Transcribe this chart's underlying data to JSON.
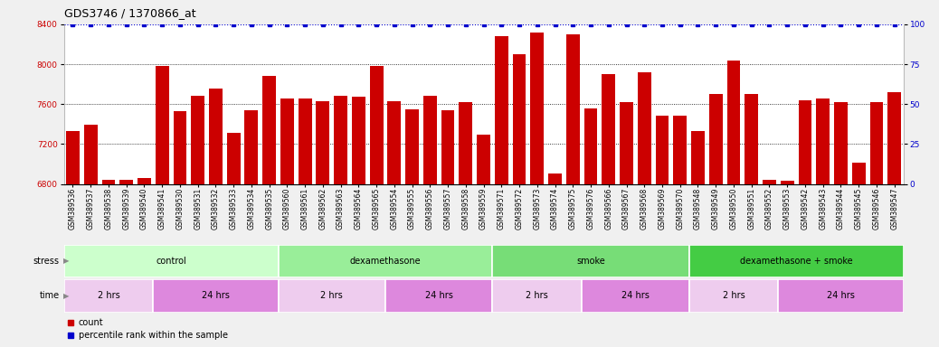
{
  "title": "GDS3746 / 1370866_at",
  "samples": [
    "GSM389536",
    "GSM389537",
    "GSM389538",
    "GSM389539",
    "GSM389540",
    "GSM389541",
    "GSM389530",
    "GSM389531",
    "GSM389532",
    "GSM389533",
    "GSM389534",
    "GSM389535",
    "GSM389560",
    "GSM389561",
    "GSM389562",
    "GSM389563",
    "GSM389564",
    "GSM389565",
    "GSM389554",
    "GSM389555",
    "GSM389556",
    "GSM389557",
    "GSM389558",
    "GSM389559",
    "GSM389571",
    "GSM389572",
    "GSM389573",
    "GSM389574",
    "GSM389575",
    "GSM389576",
    "GSM389566",
    "GSM389567",
    "GSM389568",
    "GSM389569",
    "GSM389570",
    "GSM389548",
    "GSM389549",
    "GSM389550",
    "GSM389551",
    "GSM389552",
    "GSM389553",
    "GSM389542",
    "GSM389543",
    "GSM389544",
    "GSM389545",
    "GSM389546",
    "GSM389547"
  ],
  "values": [
    7330,
    7390,
    6840,
    6840,
    6860,
    7980,
    7530,
    7680,
    7760,
    7310,
    7540,
    7880,
    7660,
    7660,
    7630,
    7680,
    7670,
    7980,
    7630,
    7550,
    7680,
    7540,
    7620,
    7290,
    8280,
    8100,
    8320,
    6900,
    8300,
    7560,
    7900,
    7620,
    7920,
    7480,
    7480,
    7330,
    7700,
    8040,
    7700,
    6840,
    6830,
    7640,
    7660,
    7620,
    7010,
    7620,
    7720
  ],
  "bar_color": "#cc0000",
  "percentile_color": "#0000cc",
  "ylim_left": [
    6800,
    8400
  ],
  "ylim_right": [
    0,
    100
  ],
  "yticks_left": [
    6800,
    7200,
    7600,
    8000,
    8400
  ],
  "yticks_right": [
    0,
    25,
    50,
    75,
    100
  ],
  "bg_color": "#f0f0f0",
  "plot_bg": "#ffffff",
  "stress_groups": [
    {
      "label": "control",
      "start": 0,
      "end": 11,
      "color": "#ccffcc"
    },
    {
      "label": "dexamethasone",
      "start": 12,
      "end": 23,
      "color": "#99ee99"
    },
    {
      "label": "smoke",
      "start": 24,
      "end": 34,
      "color": "#77dd77"
    },
    {
      "label": "dexamethasone + smoke",
      "start": 35,
      "end": 46,
      "color": "#44cc44"
    }
  ],
  "time_groups": [
    {
      "label": "2 hrs",
      "start": 0,
      "end": 4,
      "color": "#eeccee"
    },
    {
      "label": "24 hrs",
      "start": 5,
      "end": 11,
      "color": "#dd88dd"
    },
    {
      "label": "2 hrs",
      "start": 12,
      "end": 17,
      "color": "#eeccee"
    },
    {
      "label": "24 hrs",
      "start": 18,
      "end": 23,
      "color": "#dd88dd"
    },
    {
      "label": "2 hrs",
      "start": 24,
      "end": 28,
      "color": "#eeccee"
    },
    {
      "label": "24 hrs",
      "start": 29,
      "end": 34,
      "color": "#dd88dd"
    },
    {
      "label": "2 hrs",
      "start": 35,
      "end": 39,
      "color": "#eeccee"
    },
    {
      "label": "24 hrs",
      "start": 40,
      "end": 46,
      "color": "#dd88dd"
    }
  ],
  "dotted_gridlines": [
    7200,
    7600,
    8000
  ],
  "title_fontsize": 9,
  "tick_fontsize": 5.5,
  "bar_width": 0.75
}
